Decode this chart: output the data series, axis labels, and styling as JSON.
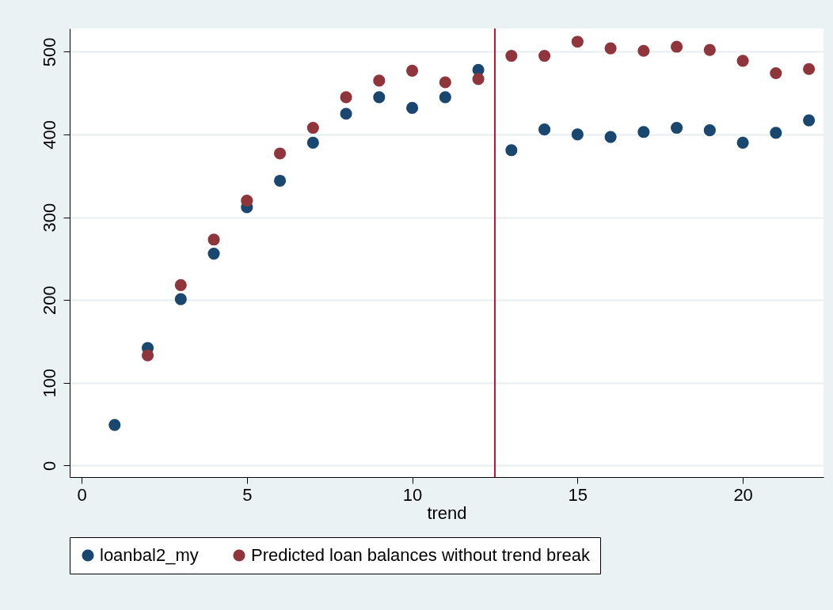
{
  "chart_data": {
    "type": "scatter",
    "xlabel": "trend",
    "x": [
      1,
      2,
      3,
      4,
      5,
      6,
      7,
      8,
      9,
      10,
      11,
      12,
      13,
      14,
      15,
      16,
      17,
      18,
      19,
      20,
      21,
      22
    ],
    "series": [
      {
        "name": "loanbal2_my",
        "color": "#1a476f",
        "values": [
          49,
          142,
          201,
          256,
          312,
          344,
          390,
          425,
          445,
          432,
          445,
          478,
          381,
          406,
          400,
          397,
          403,
          408,
          405,
          390,
          402,
          417
        ]
      },
      {
        "name": "Predicted loan balances without trend break",
        "color": "#90353b",
        "values": [
          null,
          133,
          218,
          273,
          320,
          377,
          408,
          445,
          465,
          477,
          463,
          467,
          495,
          495,
          512,
          504,
          501,
          506,
          502,
          489,
          474,
          479
        ]
      }
    ],
    "xlim": [
      -0.36,
      22.44
    ],
    "xticks": [
      0,
      5,
      10,
      15,
      20
    ],
    "ylim": [
      -14,
      528
    ],
    "yticks": [
      0,
      100,
      200,
      300,
      400,
      500
    ],
    "ref_lines": [
      {
        "axis": "x",
        "value": 12.5,
        "color": "#c8102e"
      }
    ],
    "grid": "y",
    "legend": "bottom",
    "marker": "circle"
  }
}
